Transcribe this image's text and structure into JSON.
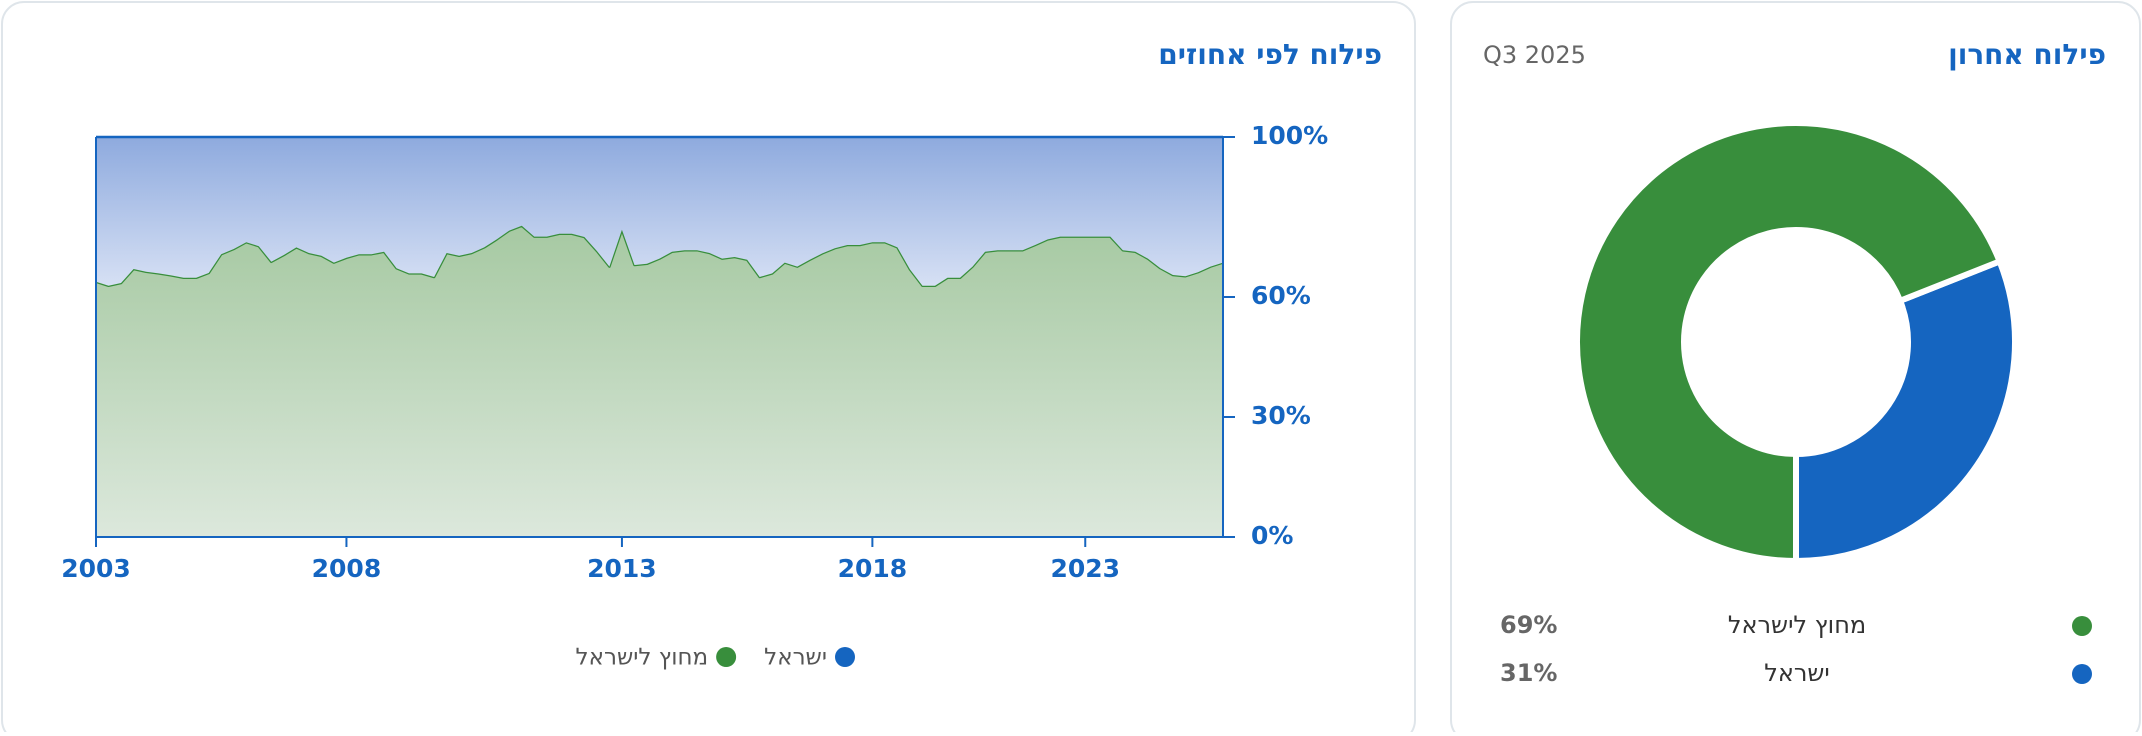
{
  "chart_data": [
    {
      "type": "stacked-area",
      "title": "פילוח לפי אחוזים",
      "categories": [
        "2003",
        null,
        null,
        null,
        null,
        null,
        null,
        null,
        null,
        null,
        null,
        null,
        null,
        null,
        null,
        null,
        null,
        null,
        null,
        null,
        "2008",
        null,
        null,
        null,
        null,
        null,
        null,
        null,
        null,
        null,
        null,
        null,
        null,
        null,
        null,
        null,
        null,
        null,
        null,
        null,
        null,
        null,
        "2013",
        null,
        null,
        null,
        null,
        null,
        null,
        null,
        null,
        null,
        null,
        null,
        null,
        null,
        null,
        null,
        null,
        null,
        null,
        null,
        "2018",
        null,
        null,
        null,
        null,
        null,
        null,
        null,
        null,
        null,
        null,
        null,
        null,
        null,
        null,
        null,
        null,
        "2023",
        null,
        null,
        null,
        null,
        null,
        null,
        null,
        null,
        null,
        null,
        null
      ],
      "series": [
        {
          "name": "ישראל",
          "color": "#1565c0",
          "values": [
            36.2,
            37.2,
            36.5,
            33,
            33.7,
            34.1,
            34.6,
            35.2,
            35.2,
            34,
            29.3,
            28,
            26.3,
            27.3,
            31.2,
            29.5,
            27.6,
            29,
            29.7,
            31.4,
            30.2,
            29.3,
            29.3,
            28.7,
            32.8,
            34.1,
            34.1,
            35,
            29,
            29.7,
            29,
            27.6,
            25.6,
            23.4,
            22.2,
            24.9,
            24.9,
            24.2,
            24.2,
            25,
            28.5,
            32.4,
            23.2,
            32,
            31.7,
            30.4,
            28.7,
            28.3,
            28.3,
            29,
            30.4,
            30,
            30.7,
            35,
            34.1,
            31.4,
            32.4,
            30.7,
            29.1,
            27.8,
            27,
            27,
            26.3,
            26.3,
            27.6,
            33.1,
            37.2,
            37.2,
            35.2,
            35.2,
            32.4,
            28.7,
            28.3,
            28.3,
            28.3,
            27,
            25.6,
            24.9,
            24.9,
            24.9,
            24.9,
            24.9,
            28.3,
            28.7,
            30.4,
            32.8,
            34.5,
            34.8,
            33.8,
            32.4,
            31.4
          ]
        },
        {
          "name": "מחוץ לישראל",
          "color": "#388e3c",
          "values": [
            63.8,
            62.8,
            63.5,
            67,
            66.3,
            65.9,
            65.4,
            64.8,
            64.8,
            66,
            70.7,
            72,
            73.7,
            72.7,
            68.8,
            70.5,
            72.4,
            71,
            70.3,
            68.6,
            69.8,
            70.7,
            70.7,
            71.3,
            67.2,
            65.9,
            65.9,
            65,
            71,
            70.3,
            71,
            72.4,
            74.4,
            76.6,
            77.8,
            75.1,
            75.1,
            75.8,
            75.8,
            75,
            71.5,
            67.6,
            76.8,
            68,
            68.3,
            69.6,
            71.3,
            71.7,
            71.7,
            71,
            69.6,
            70,
            69.3,
            65,
            65.9,
            68.6,
            67.6,
            69.3,
            70.9,
            72.2,
            73,
            73,
            73.7,
            73.7,
            72.4,
            66.9,
            62.8,
            62.8,
            64.8,
            64.8,
            67.6,
            71.3,
            71.7,
            71.7,
            71.7,
            73,
            74.4,
            75.1,
            75.1,
            75.1,
            75.1,
            75.1,
            71.7,
            71.3,
            69.6,
            67.2,
            65.5,
            65.2,
            66.2,
            67.6,
            68.6
          ]
        }
      ],
      "ylim": [
        0,
        100
      ],
      "yticks": [
        {
          "value": 0,
          "label": "0%"
        },
        {
          "value": 30,
          "label": "30%"
        },
        {
          "value": 60,
          "label": "60%"
        },
        {
          "value": 100,
          "label": "100%"
        }
      ],
      "y_axis_side": "right"
    },
    {
      "type": "donut",
      "title": "פילוח אחרון",
      "subtitle": "Q3 2025",
      "categories": [
        "ישראל",
        "מחוץ לישראל"
      ],
      "values": [
        31,
        69
      ],
      "value_labels": [
        "31%",
        "69%"
      ],
      "colors": [
        "#1565c0",
        "#388e3c"
      ]
    }
  ]
}
